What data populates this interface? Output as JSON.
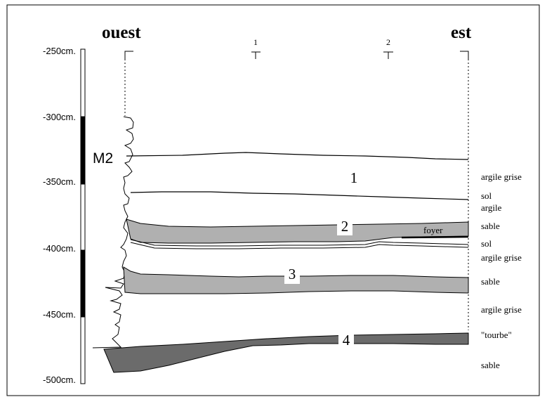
{
  "header": {
    "west": "ouest",
    "east": "est",
    "marker_1": "1",
    "marker_2": "2"
  },
  "scale": {
    "ticks": [
      "-250cm.",
      "-300cm.",
      "-350cm.",
      "-400cm.",
      "-450cm.",
      "-500cm."
    ],
    "segments": [
      {
        "from": -250,
        "to": -300,
        "fill": "white"
      },
      {
        "from": -300,
        "to": -350,
        "fill": "black"
      },
      {
        "from": -350,
        "to": -400,
        "fill": "white"
      },
      {
        "from": -400,
        "to": -450,
        "fill": "black"
      },
      {
        "from": -450,
        "to": -500,
        "fill": "white"
      }
    ]
  },
  "wall_label": "M2",
  "units": {
    "u1": "1",
    "u2": "2",
    "u3": "3",
    "u4": "4",
    "foyer": "foyer"
  },
  "layers": [
    "argile grise",
    "sol",
    "argile",
    "sable",
    "sol",
    "argile grise",
    "sable",
    "argile grise",
    "\"tourbe\"",
    "sable"
  ],
  "colors": {
    "sand": "#b0b0b0",
    "peat": "#6b6b6b",
    "scale_black": "#000000"
  }
}
